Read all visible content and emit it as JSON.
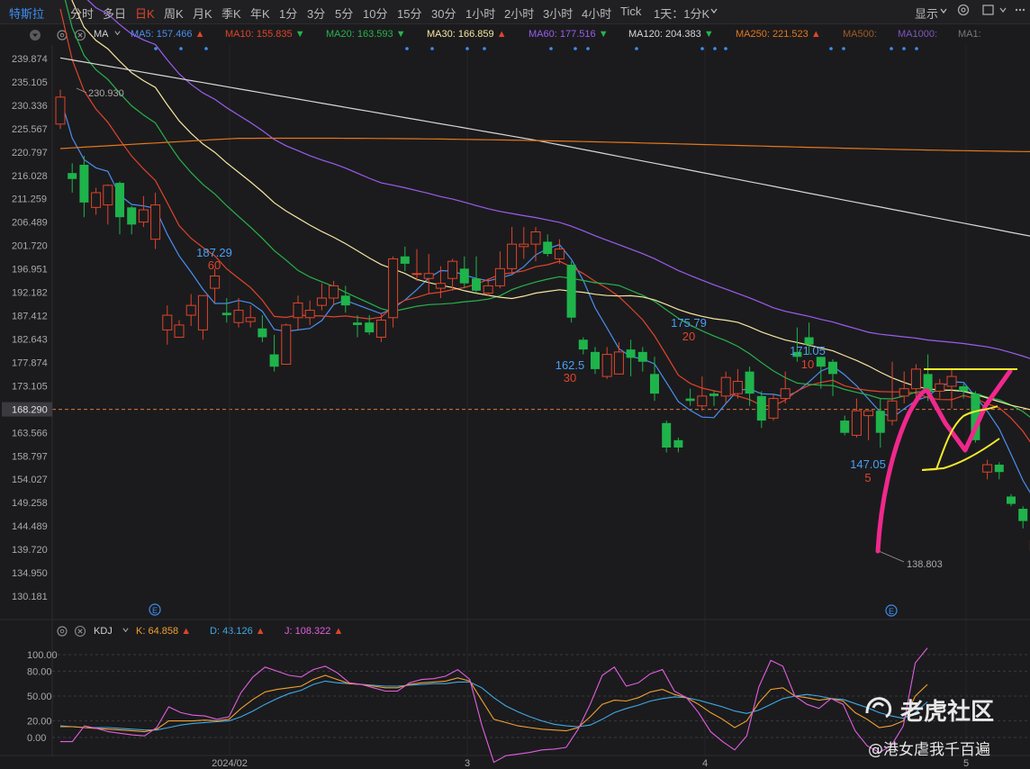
{
  "toolbar": {
    "symbol": "特斯拉",
    "items": [
      "分时",
      "多日",
      "日K",
      "周K",
      "月K",
      "季K",
      "年K",
      "1分",
      "3分",
      "5分",
      "10分",
      "15分",
      "30分",
      "1小时",
      "2小时",
      "3小时",
      "4小时",
      "Tick",
      "1天：1分K"
    ],
    "active_index": 2,
    "display_label": "显示"
  },
  "ma_legend": {
    "name": "MA",
    "items": [
      {
        "label": "MA5:",
        "value": "157.466",
        "arrow": "▲",
        "color": "#4a8ff0"
      },
      {
        "label": "MA10:",
        "value": "155.835",
        "arrow": "▼",
        "color": "#e0442b"
      },
      {
        "label": "MA20:",
        "value": "163.593",
        "arrow": "▼",
        "color": "#27b34b"
      },
      {
        "label": "MA30:",
        "value": "166.859",
        "arrow": "▲",
        "color": "#f6e6a0"
      },
      {
        "label": "MA60:",
        "value": "177.516",
        "arrow": "▼",
        "color": "#9d5cf0"
      },
      {
        "label": "MA120:",
        "value": "204.383",
        "arrow": "▼",
        "color": "#d6d6d6"
      },
      {
        "label": "MA250:",
        "value": "221.523",
        "arrow": "▲",
        "color": "#e3771c"
      },
      {
        "label": "MA500:",
        "value": "",
        "arrow": "",
        "color": "#a05a25"
      },
      {
        "label": "MA1000:",
        "value": "",
        "arrow": "",
        "color": "#7d55c0"
      },
      {
        "label": "MA1:",
        "value": "",
        "arrow": "",
        "color": "#777777"
      }
    ]
  },
  "kdj_legend": {
    "name": "KDJ",
    "items": [
      {
        "label": "K:",
        "value": "64.858",
        "arrow": "▲",
        "color": "#f0a030"
      },
      {
        "label": "D:",
        "value": "43.126",
        "arrow": "▲",
        "color": "#3fa9e6"
      },
      {
        "label": "J:",
        "value": "108.322",
        "arrow": "▲",
        "color": "#e25ee0"
      }
    ]
  },
  "chart_data": {
    "type": "candlestick",
    "price_axis_ticks": [
      "239.874",
      "235.105",
      "230.336",
      "225.567",
      "220.797",
      "216.028",
      "211.259",
      "206.489",
      "201.720",
      "196.951",
      "192.182",
      "187.412",
      "182.643",
      "177.874",
      "173.105",
      "168.290",
      "163.566",
      "158.797",
      "154.027",
      "149.258",
      "144.489",
      "139.720",
      "134.950",
      "130.181"
    ],
    "current_price": "168.290",
    "kdj_axis_ticks": [
      "100.00",
      "80.00",
      "50.00",
      "20.00",
      "0.00"
    ],
    "x_ticks": [
      "2024/02",
      "3",
      "4",
      "5"
    ],
    "annotations": [
      {
        "price": "187.29",
        "period": "60"
      },
      {
        "price": "175.79",
        "period": "20"
      },
      {
        "price": "162.5",
        "period": "30"
      },
      {
        "price": "171.05",
        "period": "10"
      },
      {
        "price": "147.05",
        "period": "5"
      },
      {
        "price": "230.930"
      },
      {
        "price": "138.803"
      }
    ],
    "candles": [
      [
        226.5,
        232.0,
        233.5,
        225.5
      ],
      [
        216.5,
        215.3,
        218.5,
        212.5
      ],
      [
        218.2,
        210.5,
        220.0,
        207.5
      ],
      [
        209.5,
        212.5,
        213.5,
        208.0
      ],
      [
        210.0,
        214.0,
        214.2,
        206.0
      ],
      [
        214.5,
        207.5,
        214.8,
        204.0
      ],
      [
        209.5,
        206.0,
        209.8,
        204.0
      ],
      [
        206.5,
        209.0,
        211.8,
        205.5
      ],
      [
        203.0,
        210.0,
        212.5,
        201.0
      ],
      [
        184.5,
        187.5,
        189.5,
        181.5
      ],
      [
        183.0,
        185.5,
        186.5,
        184.0
      ],
      [
        187.5,
        189.5,
        191.8,
        185.3
      ],
      [
        184.5,
        191.5,
        191.5,
        182.5
      ],
      [
        193.0,
        195.5,
        197.0,
        190.0
      ],
      [
        188.0,
        187.5,
        191.0,
        186.0
      ],
      [
        186.0,
        188.5,
        191.0,
        185.0
      ],
      [
        186.2,
        187.0,
        189.5,
        185.0
      ],
      [
        184.8,
        183.0,
        187.5,
        182.0
      ],
      [
        179.5,
        177.0,
        183.5,
        176.0
      ],
      [
        177.5,
        185.5,
        185.8,
        177.5
      ],
      [
        187.0,
        190.0,
        191.5,
        184.5
      ],
      [
        187.0,
        188.5,
        190.5,
        185.5
      ],
      [
        189.5,
        191.0,
        194.0,
        188.5
      ],
      [
        191.0,
        193.5,
        194.5,
        189.5
      ],
      [
        191.5,
        189.5,
        193.5,
        188.0
      ],
      [
        186.0,
        185.5,
        187.5,
        183.0
      ],
      [
        186.0,
        184.0,
        187.5,
        183.5
      ],
      [
        183.0,
        186.5,
        188.0,
        182.0
      ],
      [
        187.0,
        199.0,
        199.5,
        185.0
      ],
      [
        199.5,
        198.0,
        201.5,
        196.5
      ],
      [
        196.0,
        196.0,
        201.0,
        194.5
      ],
      [
        195.0,
        196.0,
        200.0,
        192.0
      ],
      [
        193.0,
        194.0,
        197.5,
        191.0
      ],
      [
        195.0,
        198.5,
        199.0,
        192.5
      ],
      [
        197.0,
        194.0,
        199.5,
        193.0
      ],
      [
        195.0,
        192.5,
        199.5,
        192.0
      ],
      [
        192.0,
        193.5,
        195.0,
        191.5
      ],
      [
        193.5,
        197.0,
        200.5,
        193.0
      ],
      [
        197.0,
        202.0,
        205.5,
        196.0
      ],
      [
        201.5,
        202.0,
        205.5,
        199.0
      ],
      [
        202.0,
        204.5,
        205.5,
        198.5
      ],
      [
        202.5,
        200.0,
        204.0,
        199.5
      ],
      [
        199.0,
        201.0,
        203.0,
        198.0
      ],
      [
        197.8,
        187.0,
        198.5,
        186.0
      ],
      [
        182.5,
        180.5,
        183.0,
        179.5
      ],
      [
        180.0,
        176.5,
        181.0,
        175.5
      ],
      [
        175.0,
        179.5,
        181.0,
        174.5
      ],
      [
        175.5,
        180.0,
        182.0,
        175.5
      ],
      [
        180.5,
        178.8,
        182.5,
        175.0
      ],
      [
        180.0,
        178.0,
        181.0,
        176.0
      ],
      [
        175.5,
        171.5,
        179.0,
        170.0
      ],
      [
        165.5,
        160.5,
        166.0,
        159.5
      ],
      [
        162.0,
        160.5,
        162.5,
        159.5
      ],
      [
        170.5,
        170.0,
        172.5,
        169.0
      ],
      [
        169.0,
        171.0,
        175.0,
        168.0
      ],
      [
        171.5,
        171.0,
        172.0,
        169.0
      ],
      [
        171.0,
        174.8,
        176.0,
        169.5
      ],
      [
        171.5,
        174.0,
        176.5,
        170.5
      ],
      [
        176.0,
        171.5,
        177.0,
        169.0
      ],
      [
        171.0,
        166.0,
        172.0,
        164.5
      ],
      [
        166.5,
        170.5,
        171.5,
        166.0
      ],
      [
        170.5,
        172.5,
        176.0,
        169.5
      ],
      [
        180.0,
        179.0,
        185.0,
        178.0
      ],
      [
        183.0,
        181.5,
        186.0,
        179.5
      ],
      [
        179.0,
        177.0,
        179.0,
        172.5
      ],
      [
        178.0,
        175.5,
        178.5,
        171.0
      ],
      [
        166.0,
        163.5,
        167.0,
        163.0
      ],
      [
        163.0,
        168.0,
        170.5,
        162.5
      ],
      [
        167.0,
        168.0,
        168.0,
        162.0
      ],
      [
        168.0,
        163.5,
        170.5,
        160.5
      ],
      [
        166.0,
        170.0,
        178.0,
        165.0
      ],
      [
        171.0,
        172.5,
        176.0,
        169.5
      ],
      [
        172.5,
        176.5,
        177.5,
        170.5
      ],
      [
        175.5,
        172.0,
        179.5,
        170.0
      ],
      [
        172.0,
        173.5,
        174.5,
        170.5
      ],
      [
        173.0,
        175.0,
        176.5,
        168.5
      ],
      [
        173.0,
        172.0,
        173.5,
        170.5
      ],
      [
        171.5,
        162.0,
        172.0,
        161.5
      ],
      [
        155.5,
        157.0,
        158.0,
        154.0
      ],
      [
        157.0,
        155.5,
        157.5,
        154.0
      ],
      [
        150.5,
        149.0,
        151.0,
        148.5
      ],
      [
        148.0,
        145.5,
        148.5,
        144.0
      ],
      [
        139.5,
        141.5,
        142.5,
        138.8
      ],
      [
        143.5,
        145.5,
        146.0,
        140.0
      ],
      [
        160.0,
        163.5,
        165.5,
        158.0
      ],
      [
        160.0,
        170.0,
        172.5,
        159.5
      ],
      [
        169.0,
        168.5,
        170.5,
        167.0
      ]
    ],
    "kdj": {
      "K": [
        13,
        13,
        12,
        11,
        10,
        9,
        8,
        7,
        10,
        20,
        20,
        20,
        21,
        20,
        22,
        35,
        46,
        55,
        58,
        60,
        62,
        70,
        75,
        70,
        65,
        64,
        62,
        60,
        60,
        64,
        66,
        67,
        68,
        72,
        68,
        45,
        22,
        18,
        14,
        12,
        10,
        9,
        8,
        12,
        25,
        40,
        45,
        44,
        48,
        55,
        58,
        52,
        48,
        40,
        30,
        22,
        12,
        20,
        42,
        58,
        60,
        50,
        48,
        45,
        47,
        44,
        30,
        22,
        12,
        14,
        20,
        50,
        64
      ],
      "D": [
        14,
        13,
        12,
        12,
        12,
        11,
        10,
        9,
        9,
        12,
        15,
        17,
        18,
        19,
        20,
        25,
        32,
        40,
        47,
        53,
        57,
        64,
        68,
        66,
        65,
        64,
        63,
        62,
        62,
        63,
        64,
        65,
        65,
        67,
        67,
        60,
        48,
        38,
        31,
        25,
        20,
        16,
        14,
        13,
        15,
        22,
        30,
        35,
        39,
        44,
        47,
        49,
        48,
        45,
        41,
        37,
        32,
        29,
        33,
        40,
        47,
        50,
        52,
        50,
        47,
        46,
        41,
        36,
        30,
        26,
        23,
        30,
        43
      ],
      "J": [
        -5,
        -5,
        14,
        11,
        7,
        5,
        3,
        2,
        12,
        37,
        30,
        27,
        26,
        22,
        25,
        54,
        73,
        85,
        80,
        75,
        73,
        82,
        86,
        78,
        66,
        64,
        60,
        56,
        56,
        66,
        70,
        71,
        74,
        82,
        70,
        15,
        -30,
        -22,
        -20,
        -18,
        -15,
        -14,
        -12,
        10,
        40,
        75,
        85,
        62,
        66,
        77,
        82,
        56,
        48,
        30,
        7,
        -5,
        -15,
        2,
        61,
        93,
        86,
        50,
        40,
        35,
        47,
        40,
        8,
        -10,
        -18,
        -10,
        14,
        90,
        108
      ]
    }
  },
  "watermark": {
    "brand": "老虎社区",
    "author": "@港女虐我千百遍"
  }
}
